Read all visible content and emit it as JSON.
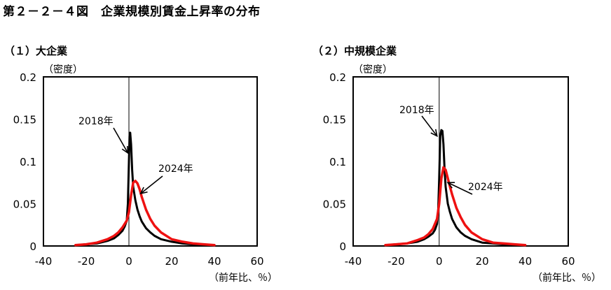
{
  "figure": {
    "title": "第２－２－４図　企業規模別賃金上昇率の分布"
  },
  "colors": {
    "series_2018": "#000000",
    "series_2024": "#ee1111",
    "axis": "#000000"
  },
  "chart_data": [
    {
      "type": "line",
      "title": "（１）大企業",
      "xlabel": "（前年比、％）",
      "ylabel": "（密度）",
      "xlim": [
        -40,
        60
      ],
      "ylim": [
        0,
        0.2
      ],
      "xticks": [
        "-40",
        "-20",
        "0",
        "20",
        "40",
        "60"
      ],
      "yticks": [
        "0",
        "0.05",
        "0.1",
        "0.15",
        "0.2"
      ],
      "vline_x": 0,
      "grid": false,
      "series": [
        {
          "name": "2018年",
          "x": [
            -25,
            -20,
            -15,
            -10,
            -7,
            -5,
            -3,
            -2,
            -1,
            -0.5,
            0,
            0.3,
            0.6,
            1,
            1.5,
            2,
            3,
            4,
            5,
            6,
            8,
            10,
            12,
            15,
            20,
            25,
            30,
            35,
            40
          ],
          "y": [
            0.001,
            0.002,
            0.003,
            0.006,
            0.009,
            0.013,
            0.018,
            0.023,
            0.03,
            0.05,
            0.1,
            0.13,
            0.134,
            0.12,
            0.09,
            0.07,
            0.054,
            0.043,
            0.035,
            0.029,
            0.021,
            0.016,
            0.012,
            0.008,
            0.005,
            0.003,
            0.002,
            0.001,
            0.001
          ]
        },
        {
          "name": "2024年",
          "x": [
            -25,
            -20,
            -15,
            -10,
            -7,
            -5,
            -3,
            -1,
            0,
            1,
            2,
            3,
            4,
            5,
            6,
            8,
            10,
            12,
            15,
            20,
            25,
            30,
            35,
            40
          ],
          "y": [
            0.001,
            0.002,
            0.004,
            0.008,
            0.012,
            0.016,
            0.022,
            0.03,
            0.04,
            0.06,
            0.075,
            0.077,
            0.074,
            0.067,
            0.058,
            0.043,
            0.032,
            0.024,
            0.016,
            0.008,
            0.005,
            0.003,
            0.002,
            0.001
          ]
        }
      ],
      "annotations": [
        {
          "text": "2018年",
          "points_to": "2018年",
          "data_point": [
            -0.5,
            0.11
          ]
        },
        {
          "text": "2024年",
          "points_to": "2024年",
          "data_point": [
            5.5,
            0.062
          ]
        }
      ]
    },
    {
      "type": "line",
      "title": "（２）中規模企業",
      "xlabel": "（前年比、％）",
      "ylabel": "（密度）",
      "xlim": [
        -40,
        60
      ],
      "ylim": [
        0,
        0.2
      ],
      "xticks": [
        "-40",
        "-20",
        "0",
        "20",
        "40",
        "60"
      ],
      "yticks": [
        "0",
        "0.05",
        "0.1",
        "0.15",
        "0.2"
      ],
      "vline_x": 0,
      "grid": false,
      "series": [
        {
          "name": "2018年",
          "x": [
            -25,
            -20,
            -15,
            -10,
            -7,
            -5,
            -3,
            -2,
            -1,
            -0.5,
            0,
            0.5,
            1,
            1.5,
            2,
            2.5,
            3,
            4,
            5,
            6,
            8,
            10,
            12,
            15,
            20,
            25,
            30,
            35,
            40
          ],
          "y": [
            0.001,
            0.002,
            0.003,
            0.005,
            0.008,
            0.011,
            0.015,
            0.019,
            0.026,
            0.04,
            0.08,
            0.13,
            0.137,
            0.136,
            0.12,
            0.09,
            0.07,
            0.05,
            0.04,
            0.032,
            0.022,
            0.016,
            0.012,
            0.008,
            0.004,
            0.003,
            0.002,
            0.001,
            0.001
          ]
        },
        {
          "name": "2024年",
          "x": [
            -25,
            -20,
            -15,
            -10,
            -7,
            -5,
            -3,
            -1,
            0,
            1,
            2,
            3,
            4,
            5,
            6,
            8,
            10,
            12,
            15,
            20,
            25,
            30,
            35,
            40
          ],
          "y": [
            0.001,
            0.002,
            0.003,
            0.007,
            0.01,
            0.014,
            0.02,
            0.032,
            0.05,
            0.08,
            0.093,
            0.09,
            0.08,
            0.07,
            0.061,
            0.045,
            0.034,
            0.025,
            0.016,
            0.008,
            0.004,
            0.003,
            0.002,
            0.001
          ]
        }
      ],
      "annotations": [
        {
          "text": "2018年",
          "points_to": "2018年",
          "data_point": [
            -1,
            0.13
          ]
        },
        {
          "text": "2024年",
          "points_to": "2024年",
          "data_point": [
            4,
            0.075
          ]
        }
      ]
    }
  ]
}
